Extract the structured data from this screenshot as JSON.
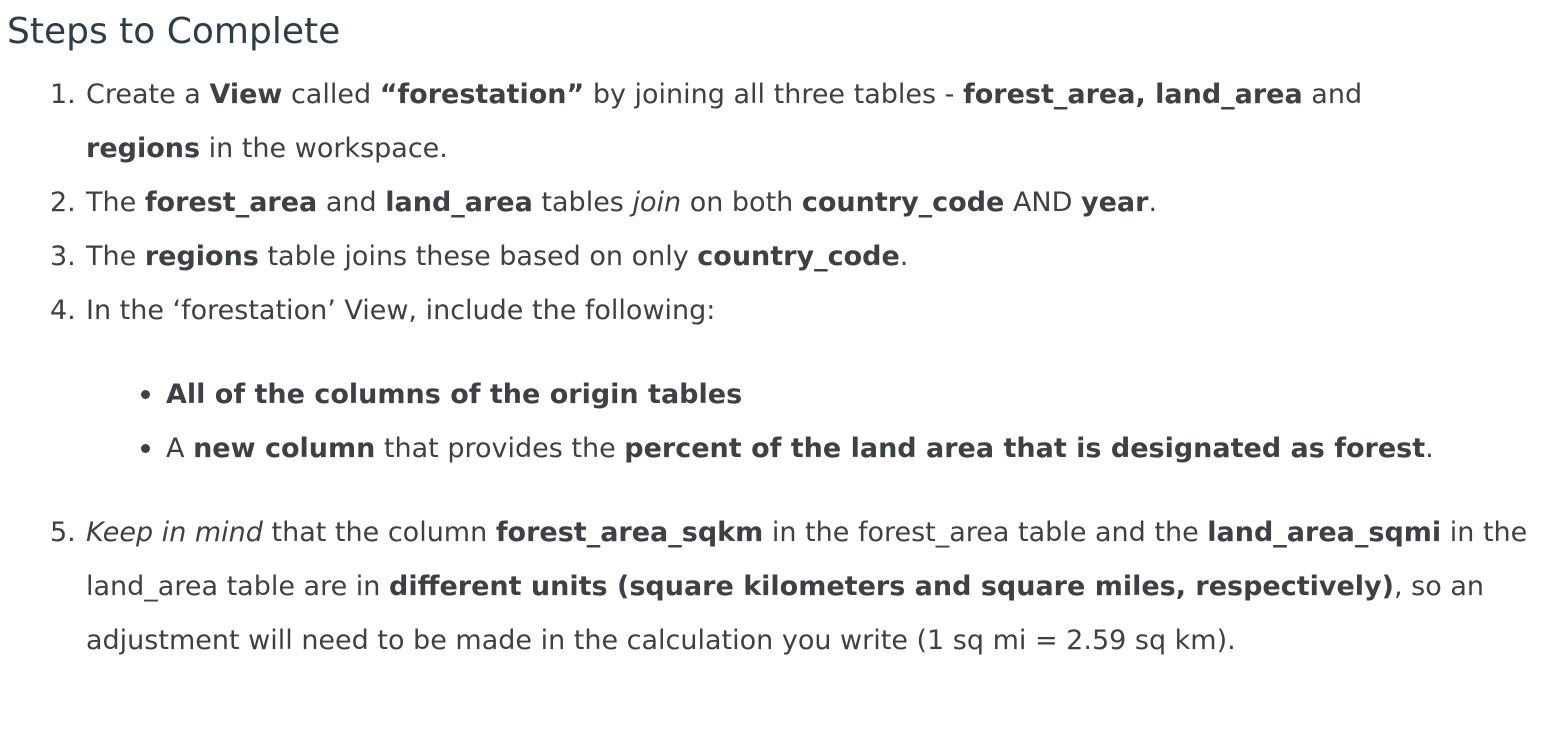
{
  "heading": "Steps to Complete",
  "steps": {
    "s1": {
      "num": "1.",
      "t1": "Create a ",
      "b1": "View",
      "t2": " called ",
      "b2": "“forestation”",
      "t3": " by joining all three tables - ",
      "b3": "forest_area, land_area",
      "t4": " and ",
      "b4": "regions",
      "t5": " in the workspace."
    },
    "s2": {
      "num": "2.",
      "t1": "The ",
      "b1": "forest_area",
      "t2": " and ",
      "b2": "land_area",
      "t3": " tables ",
      "i1": "join",
      "t4": " on both ",
      "b3": "country_code",
      "t5": " AND ",
      "b4": "year",
      "t6": "."
    },
    "s3": {
      "num": "3.",
      "t1": "The ",
      "b1": "regions",
      "t2": " table joins these based on only ",
      "b2": "country_code",
      "t3": "."
    },
    "s4": {
      "num": "4.",
      "t1": "In the ‘forestation’ View, include the following:",
      "bullets": {
        "b1": {
          "bold": "All of the columns of the origin tables"
        },
        "b2": {
          "t1": "A ",
          "b1": "new column",
          "t2": " that provides the ",
          "b2": "percent of the land area that is designated as forest",
          "t3": "."
        }
      }
    },
    "s5": {
      "num": "5.",
      "i1": "Keep in mind",
      "t1": " that the column ",
      "b1": "forest_area_sqkm",
      "t2": " in the forest_area table and the ",
      "b2": "land_area_sqmi",
      "t3": " in the land_area table are in ",
      "b3": "different units (square kilometers and square miles, respectively)",
      "t4": ", so an adjustment will need to be made in the calculation you write (1 sq mi = 2.59 sq km)."
    }
  }
}
